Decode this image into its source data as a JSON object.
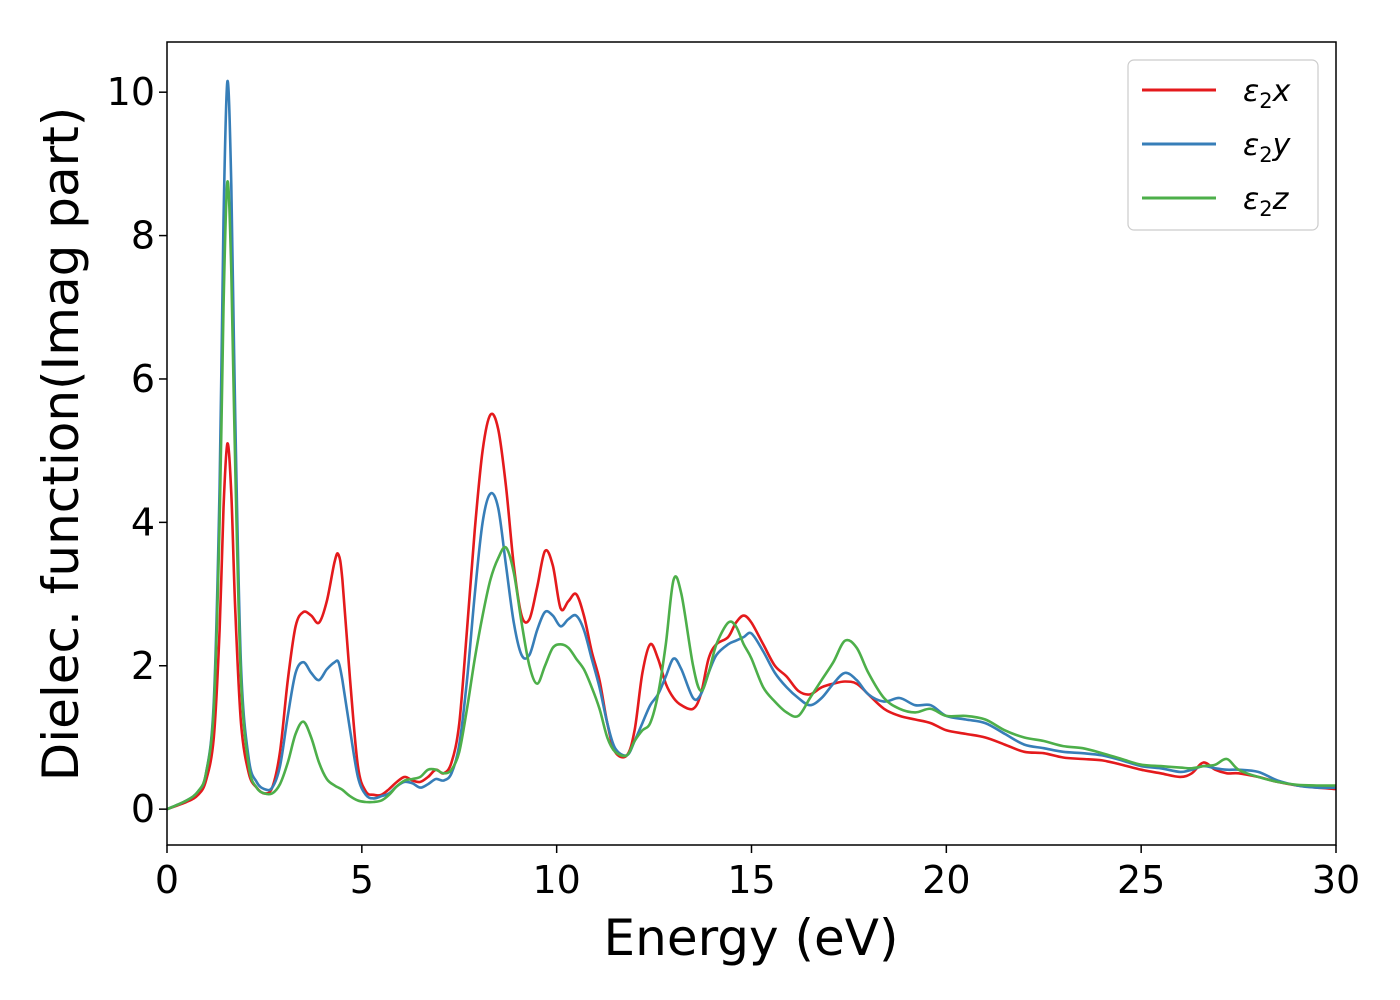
{
  "chart_data": {
    "type": "line",
    "title": "",
    "xlabel": "Energy (eV)",
    "ylabel": "Dielec. function(Imag part)",
    "xlim": [
      0,
      30
    ],
    "ylim": [
      -0.5,
      10.7
    ],
    "xticks": [
      0,
      5,
      10,
      15,
      20,
      25,
      30
    ],
    "xtick_labels": [
      "0",
      "5",
      "10",
      "15",
      "20",
      "25",
      "30"
    ],
    "yticks": [
      0,
      2,
      4,
      6,
      8,
      10
    ],
    "ytick_labels": [
      "0",
      "2",
      "4",
      "6",
      "8",
      "10"
    ],
    "grid": false,
    "legend_placement": "top-right",
    "series": [
      {
        "name": "ε2x",
        "legend": {
          "base": "ε",
          "sub": "2",
          "var": "x"
        },
        "color": "#e41a1c",
        "x": [
          0,
          0.5,
          0.8,
          1.0,
          1.2,
          1.35,
          1.45,
          1.55,
          1.65,
          1.75,
          1.9,
          2.1,
          2.3,
          2.5,
          2.7,
          2.9,
          3.1,
          3.3,
          3.5,
          3.7,
          3.9,
          4.1,
          4.3,
          4.4,
          4.5,
          4.7,
          4.9,
          5.1,
          5.3,
          5.5,
          5.7,
          5.9,
          6.1,
          6.3,
          6.5,
          6.7,
          6.9,
          7.1,
          7.3,
          7.5,
          7.7,
          7.9,
          8.1,
          8.3,
          8.5,
          8.7,
          8.9,
          9.1,
          9.3,
          9.5,
          9.7,
          9.9,
          10.1,
          10.3,
          10.5,
          10.7,
          10.9,
          11.1,
          11.3,
          11.5,
          11.8,
          12.0,
          12.2,
          12.4,
          12.6,
          12.8,
          13.0,
          13.2,
          13.5,
          13.7,
          13.9,
          14.1,
          14.4,
          14.6,
          14.8,
          15.0,
          15.3,
          15.6,
          15.9,
          16.2,
          16.5,
          16.8,
          17.1,
          17.4,
          17.7,
          18.0,
          18.4,
          18.8,
          19.2,
          19.6,
          20.0,
          20.5,
          21.0,
          21.5,
          22.0,
          22.5,
          23.0,
          23.5,
          24.0,
          24.5,
          25.0,
          25.5,
          26.0,
          26.3,
          26.6,
          26.9,
          27.2,
          27.5,
          28.0,
          28.5,
          29.0,
          29.5,
          30.0
        ],
        "values": [
          0.0,
          0.1,
          0.2,
          0.4,
          1.0,
          2.5,
          4.2,
          5.1,
          4.4,
          2.8,
          1.2,
          0.5,
          0.3,
          0.22,
          0.3,
          0.8,
          1.8,
          2.55,
          2.75,
          2.7,
          2.6,
          2.9,
          3.45,
          3.55,
          3.2,
          1.8,
          0.6,
          0.25,
          0.2,
          0.2,
          0.28,
          0.38,
          0.45,
          0.4,
          0.38,
          0.45,
          0.55,
          0.5,
          0.65,
          1.2,
          2.5,
          3.9,
          5.0,
          5.5,
          5.3,
          4.5,
          3.4,
          2.7,
          2.65,
          3.1,
          3.6,
          3.4,
          2.8,
          2.9,
          3.0,
          2.7,
          2.2,
          1.8,
          1.2,
          0.8,
          0.75,
          1.1,
          1.9,
          2.3,
          2.1,
          1.75,
          1.55,
          1.45,
          1.4,
          1.6,
          2.1,
          2.3,
          2.4,
          2.6,
          2.7,
          2.6,
          2.3,
          2.0,
          1.85,
          1.65,
          1.6,
          1.7,
          1.75,
          1.78,
          1.75,
          1.6,
          1.4,
          1.3,
          1.25,
          1.2,
          1.1,
          1.05,
          1.0,
          0.9,
          0.8,
          0.78,
          0.72,
          0.7,
          0.68,
          0.62,
          0.55,
          0.5,
          0.45,
          0.5,
          0.65,
          0.55,
          0.5,
          0.5,
          0.45,
          0.38,
          0.33,
          0.3,
          0.28
        ]
      },
      {
        "name": "ε2y",
        "legend": {
          "base": "ε",
          "sub": "2",
          "var": "y"
        },
        "color": "#377eb8",
        "x": [
          0,
          0.5,
          0.8,
          1.0,
          1.2,
          1.35,
          1.45,
          1.55,
          1.65,
          1.75,
          1.9,
          2.1,
          2.3,
          2.5,
          2.7,
          2.9,
          3.1,
          3.3,
          3.5,
          3.7,
          3.9,
          4.1,
          4.3,
          4.4,
          4.5,
          4.7,
          4.9,
          5.1,
          5.3,
          5.5,
          5.7,
          5.9,
          6.1,
          6.3,
          6.5,
          6.7,
          6.9,
          7.1,
          7.3,
          7.5,
          7.7,
          7.9,
          8.1,
          8.3,
          8.5,
          8.7,
          8.9,
          9.1,
          9.3,
          9.5,
          9.7,
          9.9,
          10.1,
          10.3,
          10.5,
          10.7,
          10.9,
          11.1,
          11.3,
          11.5,
          11.8,
          12.0,
          12.2,
          12.4,
          12.6,
          12.8,
          13.0,
          13.2,
          13.5,
          13.7,
          13.9,
          14.1,
          14.4,
          14.6,
          14.8,
          15.0,
          15.3,
          15.6,
          15.9,
          16.2,
          16.5,
          16.8,
          17.1,
          17.4,
          17.7,
          18.0,
          18.4,
          18.8,
          19.2,
          19.6,
          20.0,
          20.5,
          21.0,
          21.5,
          22.0,
          22.5,
          23.0,
          23.5,
          24.0,
          24.5,
          25.0,
          25.5,
          26.0,
          26.3,
          26.6,
          26.9,
          27.2,
          27.5,
          28.0,
          28.5,
          29.0,
          29.5,
          30.0
        ],
        "values": [
          0.0,
          0.12,
          0.25,
          0.5,
          1.5,
          4.5,
          8.2,
          10.15,
          8.7,
          5.5,
          2.0,
          0.7,
          0.38,
          0.28,
          0.3,
          0.6,
          1.3,
          1.9,
          2.05,
          1.9,
          1.8,
          1.95,
          2.05,
          2.05,
          1.8,
          1.1,
          0.45,
          0.2,
          0.15,
          0.18,
          0.22,
          0.32,
          0.38,
          0.36,
          0.3,
          0.35,
          0.42,
          0.4,
          0.5,
          0.9,
          1.8,
          3.0,
          4.0,
          4.4,
          4.2,
          3.4,
          2.6,
          2.15,
          2.15,
          2.5,
          2.75,
          2.7,
          2.55,
          2.65,
          2.7,
          2.5,
          2.1,
          1.7,
          1.2,
          0.85,
          0.75,
          0.95,
          1.2,
          1.45,
          1.6,
          1.85,
          2.1,
          1.95,
          1.55,
          1.6,
          1.9,
          2.15,
          2.3,
          2.35,
          2.4,
          2.45,
          2.2,
          1.9,
          1.7,
          1.55,
          1.45,
          1.55,
          1.75,
          1.9,
          1.8,
          1.6,
          1.5,
          1.55,
          1.45,
          1.45,
          1.3,
          1.25,
          1.2,
          1.05,
          0.9,
          0.85,
          0.8,
          0.78,
          0.75,
          0.68,
          0.6,
          0.57,
          0.52,
          0.55,
          0.6,
          0.57,
          0.55,
          0.55,
          0.52,
          0.4,
          0.33,
          0.3,
          0.3
        ]
      },
      {
        "name": "ε2z",
        "legend": {
          "base": "ε",
          "sub": "2",
          "var": "z"
        },
        "color": "#4daf4a",
        "x": [
          0,
          0.5,
          0.8,
          1.0,
          1.2,
          1.35,
          1.45,
          1.55,
          1.65,
          1.75,
          1.9,
          2.1,
          2.3,
          2.5,
          2.7,
          2.9,
          3.1,
          3.3,
          3.5,
          3.7,
          3.9,
          4.1,
          4.3,
          4.4,
          4.5,
          4.7,
          4.9,
          5.1,
          5.3,
          5.5,
          5.7,
          5.9,
          6.1,
          6.3,
          6.5,
          6.7,
          6.9,
          7.1,
          7.3,
          7.5,
          7.7,
          7.9,
          8.1,
          8.3,
          8.5,
          8.7,
          8.9,
          9.1,
          9.3,
          9.5,
          9.7,
          9.9,
          10.1,
          10.3,
          10.5,
          10.7,
          10.9,
          11.1,
          11.3,
          11.5,
          11.8,
          12.0,
          12.2,
          12.4,
          12.6,
          12.8,
          13.0,
          13.2,
          13.5,
          13.7,
          13.9,
          14.1,
          14.4,
          14.6,
          14.8,
          15.0,
          15.3,
          15.6,
          15.9,
          16.2,
          16.5,
          16.8,
          17.1,
          17.4,
          17.7,
          18.0,
          18.4,
          18.8,
          19.2,
          19.6,
          20.0,
          20.5,
          21.0,
          21.5,
          22.0,
          22.5,
          23.0,
          23.5,
          24.0,
          24.5,
          25.0,
          25.5,
          26.0,
          26.3,
          26.6,
          26.9,
          27.2,
          27.5,
          28.0,
          28.5,
          29.0,
          29.5,
          30.0
        ],
        "values": [
          0.0,
          0.12,
          0.25,
          0.5,
          1.4,
          4.0,
          7.0,
          8.75,
          7.5,
          4.8,
          1.8,
          0.6,
          0.3,
          0.22,
          0.22,
          0.35,
          0.65,
          1.05,
          1.22,
          1.0,
          0.65,
          0.42,
          0.33,
          0.3,
          0.27,
          0.18,
          0.12,
          0.1,
          0.1,
          0.12,
          0.2,
          0.32,
          0.4,
          0.42,
          0.45,
          0.55,
          0.55,
          0.5,
          0.55,
          0.8,
          1.4,
          2.1,
          2.7,
          3.2,
          3.5,
          3.65,
          3.3,
          2.6,
          2.0,
          1.75,
          2.0,
          2.25,
          2.3,
          2.25,
          2.1,
          1.95,
          1.7,
          1.4,
          1.0,
          0.8,
          0.75,
          0.95,
          1.1,
          1.2,
          1.6,
          2.3,
          3.2,
          3.0,
          2.0,
          1.65,
          1.9,
          2.3,
          2.6,
          2.55,
          2.3,
          2.1,
          1.7,
          1.5,
          1.35,
          1.3,
          1.55,
          1.8,
          2.05,
          2.35,
          2.25,
          1.9,
          1.55,
          1.4,
          1.35,
          1.4,
          1.3,
          1.3,
          1.25,
          1.1,
          1.0,
          0.95,
          0.88,
          0.85,
          0.78,
          0.7,
          0.62,
          0.6,
          0.58,
          0.57,
          0.6,
          0.62,
          0.7,
          0.55,
          0.45,
          0.38,
          0.34,
          0.33,
          0.33
        ]
      }
    ]
  }
}
